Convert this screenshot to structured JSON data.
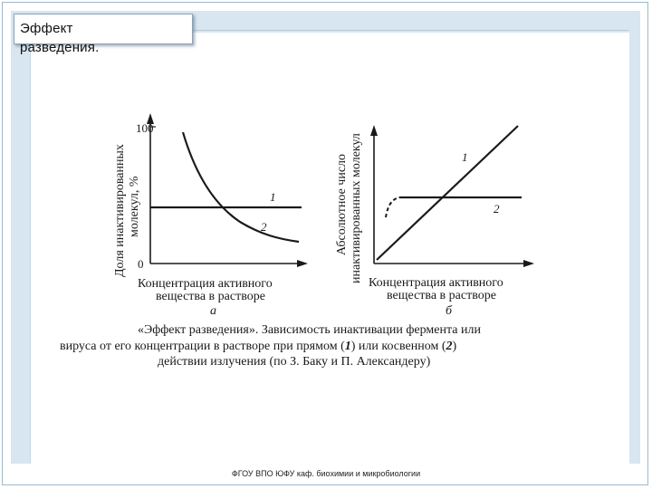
{
  "slide": {
    "title": "Эффект\nразведения.",
    "footer": "ФГОУ ВПО ЮФУ  каф. биохимии и микробиологии"
  },
  "figure": {
    "panel_a": {
      "y_label_line1": "Доля инактивированных",
      "y_label_line2": "молекул, %",
      "y_tick_top": "100",
      "y_tick_bottom": "0",
      "x_label_line1": "Концентрация активного",
      "x_label_line2": "вещества в растворе",
      "panel_letter": "а",
      "curve_labels": [
        "1",
        "2"
      ]
    },
    "panel_b": {
      "y_label_line1": "Абсолютное число",
      "y_label_line2": "инактивированных молекул",
      "x_label_line1": "Концентрация активного",
      "x_label_line2": "вещества в растворе",
      "panel_letter": "б",
      "curve_labels": [
        "1",
        "2"
      ]
    },
    "caption": {
      "line1_a": "«Эффект  разведения».  Зависимость  инактивации  фермента  или",
      "line2_a": "вируса  от  его  концентрации  в  растворе  при  прямом  (",
      "line2_num1": "1",
      "line2_b": ")  или  косвенном  (",
      "line2_num2": "2",
      "line2_c": ")",
      "line3": "действии  излучения  (по  З.  Баку  и  П.  Александеру)"
    }
  }
}
